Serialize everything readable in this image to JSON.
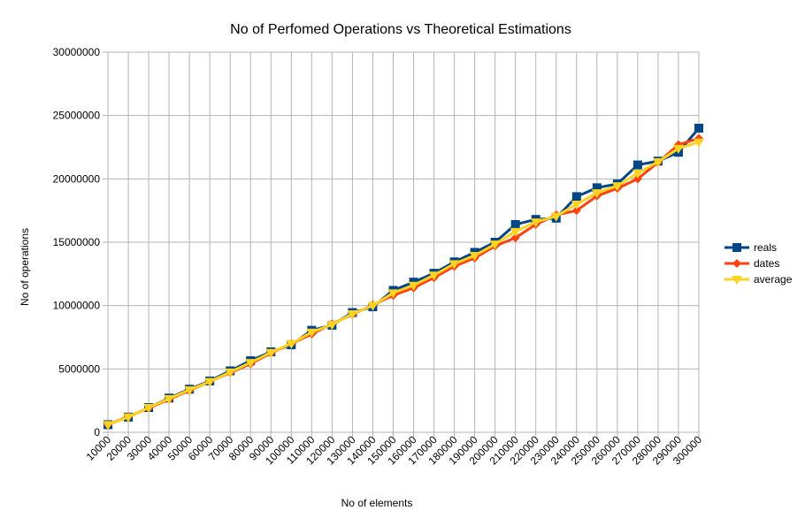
{
  "chart_data": {
    "type": "line",
    "title": "No of Perfomed Operations vs Theoretical Estimations",
    "xlabel": "No of elements",
    "ylabel": "No of operations",
    "categories": [
      "10000",
      "20000",
      "30000",
      "40000",
      "50000",
      "60000",
      "70000",
      "80000",
      "90000",
      "100000",
      "110000",
      "120000",
      "130000",
      "140000",
      "150000",
      "160000",
      "170000",
      "180000",
      "190000",
      "200000",
      "210000",
      "220000",
      "230000",
      "240000",
      "250000",
      "260000",
      "270000",
      "280000",
      "290000",
      "300000"
    ],
    "ylim": [
      0,
      30000000
    ],
    "yticks": [
      "0",
      "5000000",
      "10000000",
      "15000000",
      "20000000",
      "25000000",
      "30000000"
    ],
    "grid": true,
    "legend_position": "right",
    "series": [
      {
        "name": "reals",
        "color": "#004586",
        "marker": "square",
        "values": [
          600000,
          1200000,
          1950000,
          2700000,
          3400000,
          4050000,
          4850000,
          5650000,
          6350000,
          6900000,
          8050000,
          8450000,
          9450000,
          9900000,
          11200000,
          11850000,
          12550000,
          13450000,
          14200000,
          15000000,
          16400000,
          16800000,
          16900000,
          18600000,
          19300000,
          19600000,
          21100000,
          21400000,
          22100000,
          24000000
        ]
      },
      {
        "name": "dates",
        "color": "#ff420e",
        "marker": "diamond",
        "values": [
          600000,
          1250000,
          1900000,
          2600000,
          3300000,
          4000000,
          4700000,
          5400000,
          6250000,
          7000000,
          7750000,
          8550000,
          9300000,
          10050000,
          10800000,
          11400000,
          12200000,
          13100000,
          13750000,
          14700000,
          15350000,
          16400000,
          17150000,
          17500000,
          18650000,
          19250000,
          20000000,
          21300000,
          22700000,
          23200000
        ]
      },
      {
        "name": "average",
        "color": "#ffd320",
        "marker": "triangle-down",
        "values": [
          600000,
          1200000,
          1950000,
          2650000,
          3350000,
          4000000,
          4750000,
          5500000,
          6300000,
          7000000,
          7900000,
          8500000,
          9350000,
          10000000,
          11000000,
          11600000,
          12400000,
          13300000,
          13950000,
          14850000,
          15850000,
          16600000,
          17050000,
          18000000,
          18900000,
          19450000,
          20450000,
          21350000,
          22400000,
          22900000
        ]
      }
    ]
  }
}
